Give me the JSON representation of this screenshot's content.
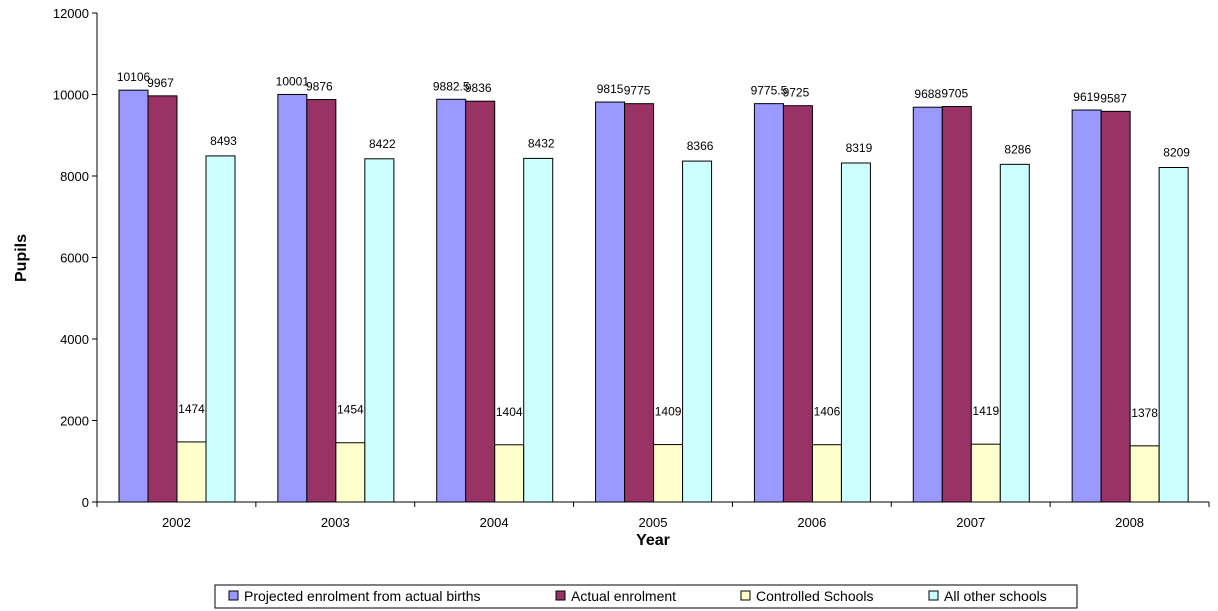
{
  "chart_data": {
    "type": "bar",
    "title": "",
    "xlabel": "Year",
    "ylabel": "Pupils",
    "categories": [
      "2002",
      "2003",
      "2004",
      "2005",
      "2006",
      "2007",
      "2008"
    ],
    "ylim": [
      0,
      12000
    ],
    "yticks": [
      "0",
      "2000",
      "4000",
      "6000",
      "8000",
      "10000",
      "12000"
    ],
    "grid": false,
    "legend_position": "bottom",
    "series": [
      {
        "name": "Projected enrolment from actual births",
        "color": "#9999FF",
        "values": [
          10106,
          10001,
          9882.5,
          9815,
          9775.5,
          9688,
          9619
        ],
        "labels": [
          "10106",
          "10001",
          "9882.5",
          "9815",
          "9775.5",
          "9688",
          "9619"
        ]
      },
      {
        "name": "Actual enrolment",
        "color": "#993366",
        "values": [
          9967,
          9876,
          9836,
          9775,
          9725,
          9705,
          9587
        ],
        "labels": [
          "9967",
          "9876",
          "9836",
          "9775",
          "9725",
          "9705",
          "9587"
        ]
      },
      {
        "name": "Controlled Schools",
        "color": "#FFFFCC",
        "values": [
          1474,
          1454,
          1404,
          1409,
          1406,
          1419,
          1378
        ],
        "labels": [
          "1474",
          "1454",
          "1404",
          "1409",
          "1406",
          "1419",
          "1378"
        ]
      },
      {
        "name": "All other schools",
        "color": "#CCFFFF",
        "values": [
          8493,
          8422,
          8432,
          8366,
          8319,
          8286,
          8209
        ],
        "labels": [
          "8493",
          "8422",
          "8432",
          "8366",
          "8319",
          "8286",
          "8209"
        ]
      }
    ]
  }
}
